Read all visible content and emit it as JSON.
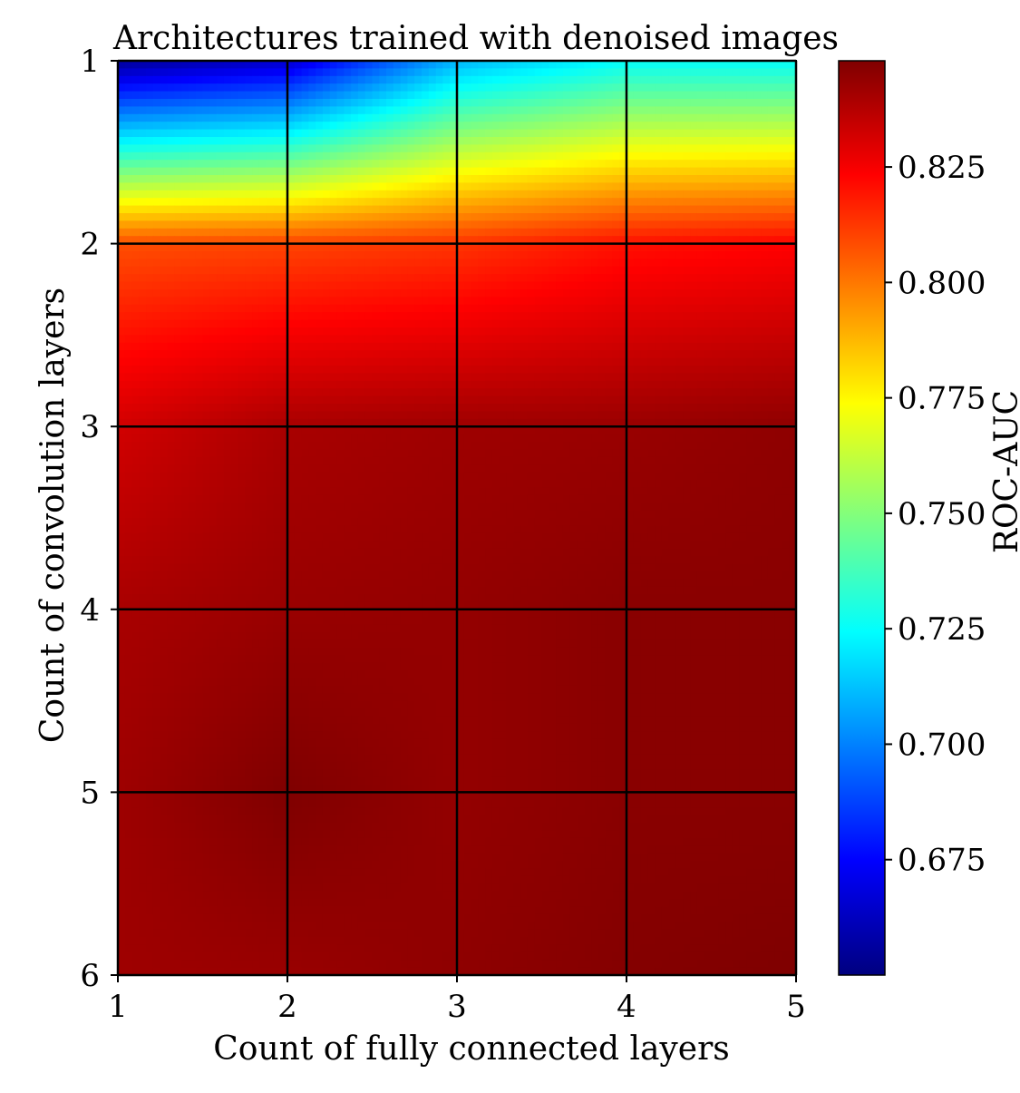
{
  "chart_data": {
    "type": "heatmap",
    "title": "Architectures trained with denoised images",
    "xlabel": "Count of fully connected layers",
    "ylabel": "Count of convolution layers",
    "x": [
      1,
      2,
      3,
      4,
      5
    ],
    "y": [
      1,
      2,
      3,
      4,
      5,
      6
    ],
    "x_tick_labels": [
      "1",
      "2",
      "3",
      "4",
      "5"
    ],
    "y_tick_labels": [
      "1",
      "2",
      "3",
      "4",
      "5",
      "6"
    ],
    "xlim": [
      1,
      5
    ],
    "ylim": [
      1,
      6
    ],
    "y_inverted": true,
    "grid": true,
    "z": [
      [
        0.655,
        0.665,
        0.71,
        0.725,
        0.725
      ],
      [
        0.808,
        0.81,
        0.813,
        0.82,
        0.823
      ],
      [
        0.832,
        0.84,
        0.842,
        0.843,
        0.845
      ],
      [
        0.84,
        0.843,
        0.844,
        0.846,
        0.846
      ],
      [
        0.842,
        0.848,
        0.844,
        0.846,
        0.846
      ],
      [
        0.842,
        0.843,
        0.845,
        0.847,
        0.848
      ]
    ],
    "colorbar": {
      "label": "ROC-AUC",
      "min": 0.65,
      "max": 0.848,
      "ticks": [
        0.675,
        0.7,
        0.725,
        0.75,
        0.775,
        0.8,
        0.825
      ],
      "tick_labels": [
        "0.675",
        "0.700",
        "0.725",
        "0.750",
        "0.775",
        "0.800",
        "0.825"
      ],
      "colormap": "jet",
      "colormap_stops": [
        "#00007f",
        "#0000ff",
        "#007fff",
        "#00ffff",
        "#7fff7f",
        "#ffff00",
        "#ff7f00",
        "#ff0000",
        "#7f0000"
      ]
    }
  }
}
